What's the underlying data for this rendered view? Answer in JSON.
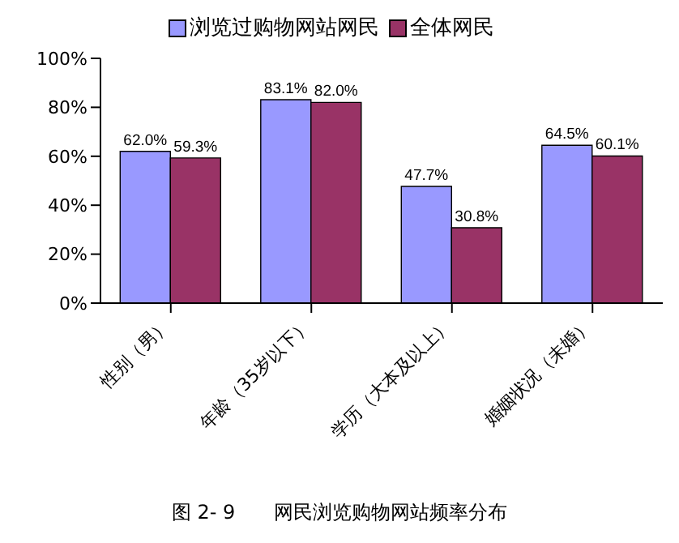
{
  "chart_data": {
    "type": "bar",
    "title": "图 2- 9　　网民浏览购物网站频率分布",
    "categories": [
      "性别（男）",
      "年龄（35岁以下）",
      "学历（大本及以上）",
      "婚姻状况（未婚）"
    ],
    "series": [
      {
        "name": "浏览过购物网站网民",
        "color": "#9999ff",
        "values": [
          62.0,
          83.1,
          47.7,
          64.5
        ],
        "value_labels": [
          "62.0%",
          "83.1%",
          "47.7%",
          "64.5%"
        ]
      },
      {
        "name": "全体网民",
        "color": "#993366",
        "values": [
          59.3,
          82.0,
          30.8,
          60.1
        ],
        "value_labels": [
          "59.3%",
          "82.0%",
          "30.8%",
          "60.1%"
        ]
      }
    ],
    "ylim": [
      0,
      100
    ],
    "yticks": [
      {
        "value": 0,
        "label": "0%"
      },
      {
        "value": 20,
        "label": "20%"
      },
      {
        "value": 40,
        "label": "40%"
      },
      {
        "value": 60,
        "label": "60%"
      },
      {
        "value": 80,
        "label": "80%"
      },
      {
        "value": 100,
        "label": "100%"
      }
    ],
    "grid": false,
    "legend": "top"
  }
}
